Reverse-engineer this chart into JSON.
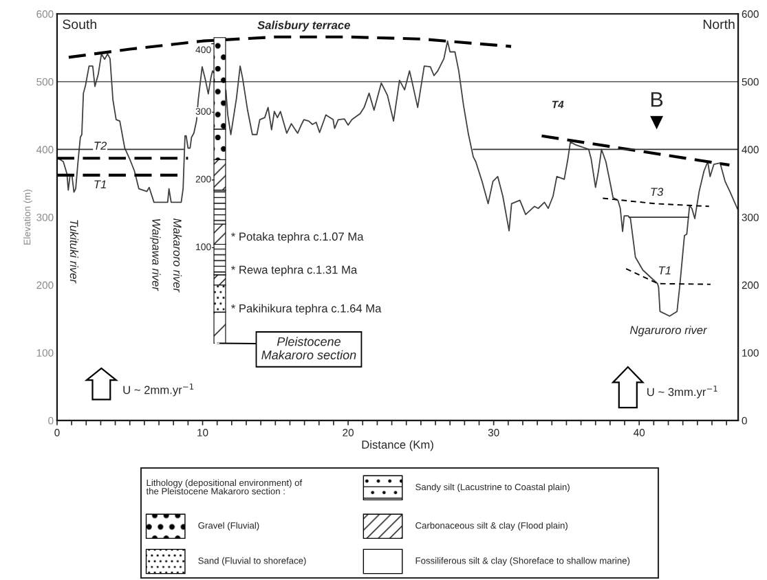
{
  "chart_data": {
    "type": "line",
    "xlabel": "Distance (Km)",
    "ylabel": "Elevation (m)",
    "xlim": [
      0,
      46.8
    ],
    "xticks": [
      0,
      {
        "value": 1,
        "label": null
      },
      {
        "value": 2,
        "label": null
      },
      {
        "value": 3,
        "label": null
      },
      {
        "value": 4,
        "label": null
      },
      {
        "value": 5,
        "label": null
      },
      {
        "value": 6,
        "label": null
      },
      {
        "value": 7,
        "label": null
      },
      {
        "value": 8,
        "label": null
      },
      {
        "value": 9,
        "label": null
      },
      10,
      {
        "value": 11,
        "label": null
      },
      {
        "value": 12,
        "label": null
      },
      {
        "value": 13,
        "label": null
      },
      {
        "value": 14,
        "label": null
      },
      {
        "value": 15,
        "label": null
      },
      {
        "value": 16,
        "label": null
      },
      {
        "value": 17,
        "label": null
      },
      {
        "value": 18,
        "label": null
      },
      {
        "value": 19,
        "label": null
      },
      20,
      {
        "value": 21,
        "label": null
      },
      {
        "value": 22,
        "label": null
      },
      {
        "value": 23,
        "label": null
      },
      {
        "value": 24,
        "label": null
      },
      {
        "value": 25,
        "label": null
      },
      {
        "value": 26,
        "label": null
      },
      {
        "value": 27,
        "label": null
      },
      {
        "value": 28,
        "label": null
      },
      {
        "value": 29,
        "label": null
      },
      30,
      {
        "value": 31,
        "label": null
      },
      {
        "value": 32,
        "label": null
      },
      {
        "value": 33,
        "label": null
      },
      {
        "value": 34,
        "label": null
      },
      {
        "value": 35,
        "label": null
      },
      {
        "value": 36,
        "label": null
      },
      {
        "value": 37,
        "label": null
      },
      {
        "value": 38,
        "label": null
      },
      {
        "value": 39,
        "label": null
      },
      40,
      {
        "value": 41,
        "label": null
      },
      {
        "value": 42,
        "label": null
      },
      {
        "value": 43,
        "label": null
      },
      {
        "value": 44,
        "label": null
      },
      {
        "value": 45,
        "label": null
      },
      {
        "value": 46,
        "label": null
      }
    ],
    "ylim": [
      0,
      600
    ],
    "yticks": [
      0,
      100,
      200,
      300,
      400,
      500,
      600
    ],
    "y2lim": [
      0,
      600
    ],
    "y2ticks": [
      0,
      100,
      200,
      300,
      400,
      500,
      600
    ],
    "grid": false,
    "legend": false,
    "series": [
      {
        "color": "#404040",
        "line_style": "solid",
        "x": [
          0.0,
          0.43,
          0.68,
          0.77,
          0.9,
          1.02,
          1.16,
          1.28,
          1.44,
          1.6,
          1.7,
          1.81,
          1.95,
          2.2,
          2.45,
          2.6,
          2.83,
          3.05,
          3.27,
          3.47,
          3.64,
          3.84,
          4.06,
          4.31,
          4.65,
          4.99,
          5.32,
          5.62,
          6.17,
          6.33,
          6.66,
          7.6,
          7.69,
          7.84,
          8.53,
          8.66,
          8.79,
          8.87,
          9.0,
          9.14,
          9.24,
          9.4,
          9.58,
          9.7,
          9.97,
          10.18,
          10.39,
          10.58,
          10.69,
          11.6,
          11.73,
          11.94,
          12.33,
          12.58,
          12.75,
          13.09,
          13.42,
          13.73,
          13.93,
          14.27,
          14.5,
          14.74,
          14.93,
          15.14,
          15.35,
          15.78,
          16.1,
          16.37,
          16.53,
          16.8,
          16.96,
          17.29,
          17.55,
          17.8,
          18.04,
          18.47,
          18.97,
          19.07,
          19.32,
          19.74,
          20.0,
          20.26,
          20.83,
          21.1,
          21.44,
          21.78,
          22.28,
          22.7,
          23.12,
          23.53,
          23.88,
          24.22,
          24.37,
          24.78,
          25.23,
          25.65,
          25.9,
          26.16,
          26.58,
          26.83,
          27.0,
          27.34,
          27.6,
          27.93,
          28.27,
          28.6,
          28.77,
          29.2,
          29.62,
          29.95,
          30.28,
          30.63,
          31.06,
          31.23,
          31.8,
          32.2,
          32.8,
          33.06,
          33.49,
          33.75,
          34.08,
          34.34,
          34.85,
          35.1,
          35.27,
          35.61,
          36.03,
          36.53,
          36.7,
          37.0,
          37.2,
          37.41,
          37.71,
          38.05,
          38.2,
          38.54,
          38.7,
          38.86,
          38.97,
          39.24,
          39.4,
          39.74,
          40.25,
          41.26,
          41.33,
          41.43,
          42.09,
          42.6,
          42.78,
          43.11,
          43.27,
          43.46,
          43.62,
          43.82,
          44.12,
          44.45,
          44.71,
          44.87,
          45.13,
          45.56,
          45.9,
          46.23,
          46.76
        ],
        "values": [
          388,
          382,
          364,
          340,
          363,
          362,
          337,
          342,
          382,
          418,
          422,
          483,
          494,
          523,
          523,
          493,
          511,
          541,
          533,
          541,
          534,
          473,
          444,
          442,
          402,
          386,
          368,
          342,
          338,
          344,
          322,
          322,
          342,
          322,
          322,
          342,
          420,
          420,
          402,
          402,
          418,
          424,
          442,
          473,
          522,
          504,
          482,
          507,
          516,
          487,
          451,
          422,
          476,
          523,
          505,
          458,
          422,
          422,
          444,
          447,
          462,
          429,
          456,
          447,
          456,
          424,
          438,
          429,
          424,
          437,
          444,
          442,
          437,
          440,
          425,
          451,
          444,
          431,
          444,
          445,
          436,
          444,
          453,
          462,
          483,
          458,
          498,
          480,
          442,
          502,
          488,
          516,
          502,
          462,
          523,
          522,
          509,
          516,
          534,
          560,
          544,
          544,
          516,
          465,
          422,
          389,
          382,
          353,
          320,
          353,
          360,
          331,
          280,
          320,
          325,
          304,
          316,
          313,
          322,
          313,
          331,
          360,
          356,
          386,
          411,
          407,
          404,
          400,
          386,
          344,
          368,
          400,
          382,
          346,
          329,
          325,
          313,
          279,
          302,
          302,
          298,
          241,
          222,
          202,
          197,
          161,
          154,
          161,
          197,
          273,
          275,
          317,
          313,
          298,
          338,
          368,
          382,
          360,
          378,
          380,
          353,
          338,
          312
        ]
      },
      {
        "color": "#000000",
        "line_style": "dashed",
        "x": [
          0.8,
          5,
          10,
          15,
          20,
          25,
          31.2
        ],
        "values": [
          536,
          548,
          560,
          566,
          566,
          563,
          552
        ]
      },
      {
        "color": "#000000",
        "line_style": "dashed",
        "x": [
          33.3,
          46.2
        ],
        "values": [
          420,
          377
        ]
      },
      {
        "color": "#000000",
        "line_style": "dashed",
        "x": [
          0,
          9.0
        ],
        "values": [
          387,
          387
        ]
      },
      {
        "color": "#000000",
        "line_style": "dashed",
        "x": [
          0,
          8.6
        ],
        "values": [
          362,
          362
        ]
      },
      {
        "color": "#000000",
        "line_style": "dotted",
        "x": [
          37.5,
          41.1,
          44.8
        ],
        "values": [
          328,
          320,
          316
        ]
      },
      {
        "color": "#000000",
        "line_style": "dotted",
        "x": [
          39.1,
          41.3,
          44.9
        ],
        "values": [
          224,
          202,
          201
        ]
      },
      {
        "color": "#333333",
        "line_style": "solid",
        "x": [
          0,
          8.7
        ],
        "values": [
          400,
          400
        ]
      },
      {
        "color": "#333333",
        "line_style": "solid",
        "x": [
          28.6,
          46.8
        ],
        "values": [
          400,
          400
        ]
      },
      {
        "color": "#333333",
        "line_style": "solid",
        "x": [
          39.3,
          43.4
        ],
        "values": [
          300,
          300
        ]
      }
    ],
    "ref_lines": [
      {
        "axis": "y",
        "value": 500,
        "color": "#333333"
      }
    ],
    "annotations": [
      "South",
      "North",
      "Salisbury terrace",
      "T4",
      "B",
      "T2",
      "T1",
      "T3",
      "T1",
      "Tukituki river",
      "Waipawa river",
      "Makaroro river",
      "Ngaruroro river",
      "400",
      "300",
      "200",
      "100",
      "* Potaka tephra c.1.07 Ma",
      "* Rewa tephra c.1.31 Ma",
      "* Pakihikura tephra c.1.64 Ma",
      "Pleistocene\nMakaroro section",
      "U ~ 2mm.yr$^{−1}$",
      "U ~ 3mm.yr$^{−1}$",
      "Lithology (depositional environment) of\nthe Pleistocene Makaroro section :",
      "Gravel (Fluvial)",
      "Sand (Fluvial to shoreface)",
      "Sandy silt (Lacustrine to Coastal plain)",
      "Carbonaceous silt & clay (Flood plain)",
      "Fossiliferous silt & clay (Shoreface to shallow marine)"
    ]
  }
}
